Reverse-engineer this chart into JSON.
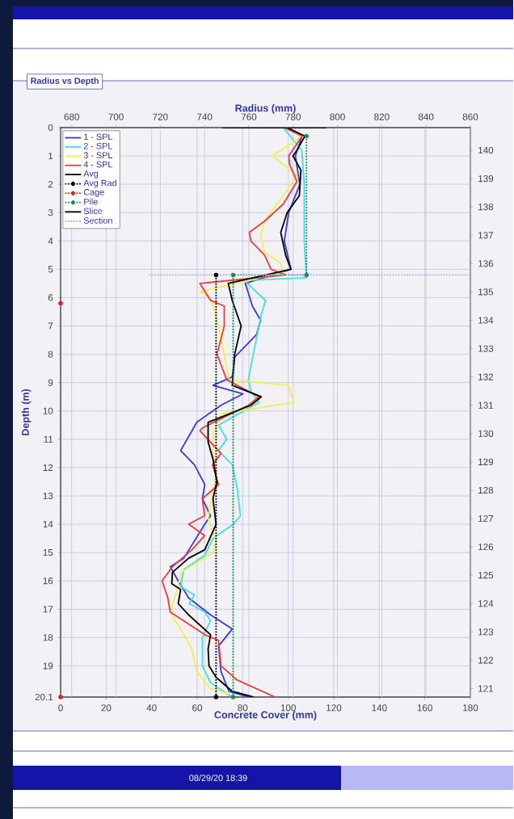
{
  "chart_data": {
    "type": "line",
    "title": "Radius vs Depth",
    "xlabel": "Concrete Cover (mm)",
    "x2label": "Radius (mm)",
    "ylabel": "Depth (m)",
    "annotations": [
      "08/29/20 18:39"
    ],
    "xlim": [
      0,
      180
    ],
    "xticks": [
      0,
      20,
      40,
      60,
      80,
      100,
      120,
      140,
      160,
      180
    ],
    "x2lim": [
      675,
      860
    ],
    "x2ticks": [
      680,
      700,
      720,
      740,
      760,
      780,
      800,
      820,
      840,
      860
    ],
    "ylim": [
      20.1,
      0
    ],
    "yticks": [
      0,
      1,
      2,
      3,
      4,
      5,
      6,
      7,
      8,
      9,
      10,
      11,
      12,
      13,
      14,
      15,
      16,
      17,
      18,
      19,
      20.1
    ],
    "y2lim": [
      120.7,
      140.8
    ],
    "y2ticks": [
      121,
      122,
      123,
      124,
      125,
      126,
      127,
      128,
      129,
      130,
      131,
      132,
      133,
      134,
      135,
      136,
      137,
      138,
      139,
      140
    ],
    "grid": true,
    "legend": "top left",
    "series": [
      {
        "name": "1 - SPL",
        "color": "#3b3bd8",
        "axis": "x2",
        "x": [
          777,
          784,
          781,
          783,
          778,
          776,
          779,
          758.4,
          761.6,
          765.3,
          763.5,
          753.6,
          752.5,
          743.8,
          757.3,
          747.4,
          736.5,
          729.2,
          735.4,
          740.1,
          739,
          742.7,
          740.1,
          730.6,
          724.5,
          728.1,
          732.8,
          742.7,
          752.5,
          746.3,
          747.4,
          751,
          760
        ],
        "values": [
          0,
          0.3,
          1,
          2,
          3,
          4,
          5,
          5.5,
          6.3,
          6.8,
          7.3,
          8.1,
          8.8,
          9.1,
          9.4,
          9.8,
          10.4,
          11.4,
          11.9,
          12.6,
          13.1,
          13.7,
          14,
          15.2,
          15.5,
          16,
          16.6,
          17.2,
          17.7,
          18.3,
          19.2,
          19.9,
          20.1
        ]
      },
      {
        "name": "2 - SPL",
        "color": "#40e0e0",
        "axis": "x2",
        "x": [
          775.5,
          783.9,
          785,
          785,
          786,
          758,
          767.5,
          765.6,
          762,
          759.8,
          760.9,
          764.5,
          746.3,
          750,
          746.3,
          752.5,
          754.7,
          756.2,
          753,
          743.8,
          740.1,
          730.6,
          729.2,
          735.4,
          733,
          740.1,
          742.7,
          739,
          739,
          742.7,
          752.5
        ],
        "values": [
          0,
          0.8,
          2,
          4,
          5.3,
          5.4,
          6.1,
          6.6,
          8,
          8.9,
          9.3,
          9.7,
          10.5,
          11,
          11.4,
          11.9,
          12.7,
          13.7,
          14,
          14.5,
          15.1,
          15.6,
          16.2,
          16.5,
          16.8,
          17.1,
          17.4,
          18,
          19,
          19.6,
          20.1
        ]
      },
      {
        "name": "3 - SPL",
        "color": "#f0f050",
        "axis": "x2",
        "x": [
          776,
          784,
          770.7,
          781.7,
          775.5,
          767.1,
          765.3,
          767.1,
          774.4,
          775.5,
          737.9,
          742.7,
          746.3,
          748.9,
          751.1,
          778,
          780.2,
          747.4,
          743.8,
          743.8,
          745.2,
          742.7,
          741.6,
          745.2,
          743.8,
          729.2,
          728.1,
          724.5,
          730.6,
          734.3,
          736.5,
          742.7,
          751.1
        ],
        "values": [
          0,
          0.3,
          1,
          1.7,
          2.4,
          3.3,
          3.8,
          4.4,
          4.8,
          5.1,
          5.8,
          6,
          7,
          8,
          8.9,
          9.1,
          9.7,
          10.1,
          10.8,
          11.5,
          12.3,
          13.3,
          13.8,
          14.6,
          15,
          15.7,
          16.2,
          17.1,
          17.9,
          18.4,
          19.2,
          19.8,
          20
        ]
      },
      {
        "name": "4 - SPL",
        "color": "#f03c3c",
        "axis": "x2",
        "x": [
          776,
          784,
          778,
          778.4,
          781.7,
          775.5,
          767.1,
          760.2,
          760.9,
          767.1,
          770,
          776.6,
          737.9,
          742.7,
          748.9,
          748.9,
          745.6,
          750,
          764.5,
          759.8,
          739,
          737.9,
          747.4,
          743.6,
          746.3,
          739,
          740,
          732.8,
          740,
          734.3,
          725.5,
          720.8,
          723.4,
          724.5,
          740.1,
          746.3,
          747.4,
          754.7,
          771.8
        ],
        "values": [
          0,
          0.3,
          1,
          1.3,
          1.9,
          2.7,
          3.3,
          3.7,
          4,
          4.5,
          5,
          5.2,
          5.5,
          6.1,
          6.3,
          7,
          8,
          8.9,
          9.5,
          9.8,
          10.6,
          10.7,
          11.5,
          11.9,
          12.6,
          13.1,
          13.7,
          14,
          14.4,
          14.9,
          15.5,
          16,
          16.6,
          17.1,
          17.9,
          18.1,
          19,
          19.5,
          20.1
        ]
      },
      {
        "name": "Avg",
        "color": "#000000",
        "axis": "x2",
        "x": [
          777.3,
          785.3,
          781.7,
          779.9,
          783.5,
          782.8,
          777.3,
          774.4,
          776.6,
          779,
          750.7,
          752.5,
          756.5,
          753.6,
          752.5,
          765.6,
          760.9,
          741.6,
          741.6,
          743.8,
          745.6,
          743.8,
          745.2,
          740.1,
          732.8,
          725.5,
          725.2,
          729.2,
          728.1,
          732.8,
          742.7,
          741.6,
          742,
          745.2,
          752.5,
          762
        ],
        "values": [
          0,
          0.3,
          0.8,
          1,
          1.5,
          2.4,
          3,
          3.7,
          4.5,
          5,
          5.5,
          6.1,
          7,
          8,
          9.1,
          9.5,
          9.8,
          10.4,
          11.1,
          11.7,
          12.5,
          13.1,
          14,
          14.9,
          15.2,
          15.7,
          16.1,
          16.3,
          16.8,
          17.2,
          17.9,
          18.4,
          19,
          19.4,
          19.9,
          20.1
        ]
      },
      {
        "name": "Avg Rad",
        "color": "#000000",
        "axis": "x2",
        "line_style": "dotted",
        "marker": "circle",
        "x": [
          745.2,
          745.2
        ],
        "values": [
          5.2,
          20.1
        ]
      },
      {
        "name": "Cage",
        "color": "#e02020",
        "line_style": "dotted",
        "marker": "circle",
        "x": [
          0,
          0
        ],
        "values": [
          6.2,
          20.1
        ]
      },
      {
        "name": "Pile",
        "color": "#1f8a5a",
        "axis": "x2",
        "line_style": "dotted",
        "marker": "circle",
        "x": [
          786,
          786,
          752.9,
          752.9
        ],
        "values": [
          0.3,
          5.2,
          5.2,
          20.1
        ]
      },
      {
        "name": "Slice",
        "color": "#000000",
        "axis": "x2",
        "x": [
          748,
          795
        ],
        "values": [
          0,
          0
        ]
      },
      {
        "name": "Section",
        "color": "#a8b0e8",
        "axis": "x2",
        "line_style": "dotted",
        "x": [
          715,
          860
        ],
        "values": [
          5.2,
          5.2
        ]
      }
    ]
  }
}
